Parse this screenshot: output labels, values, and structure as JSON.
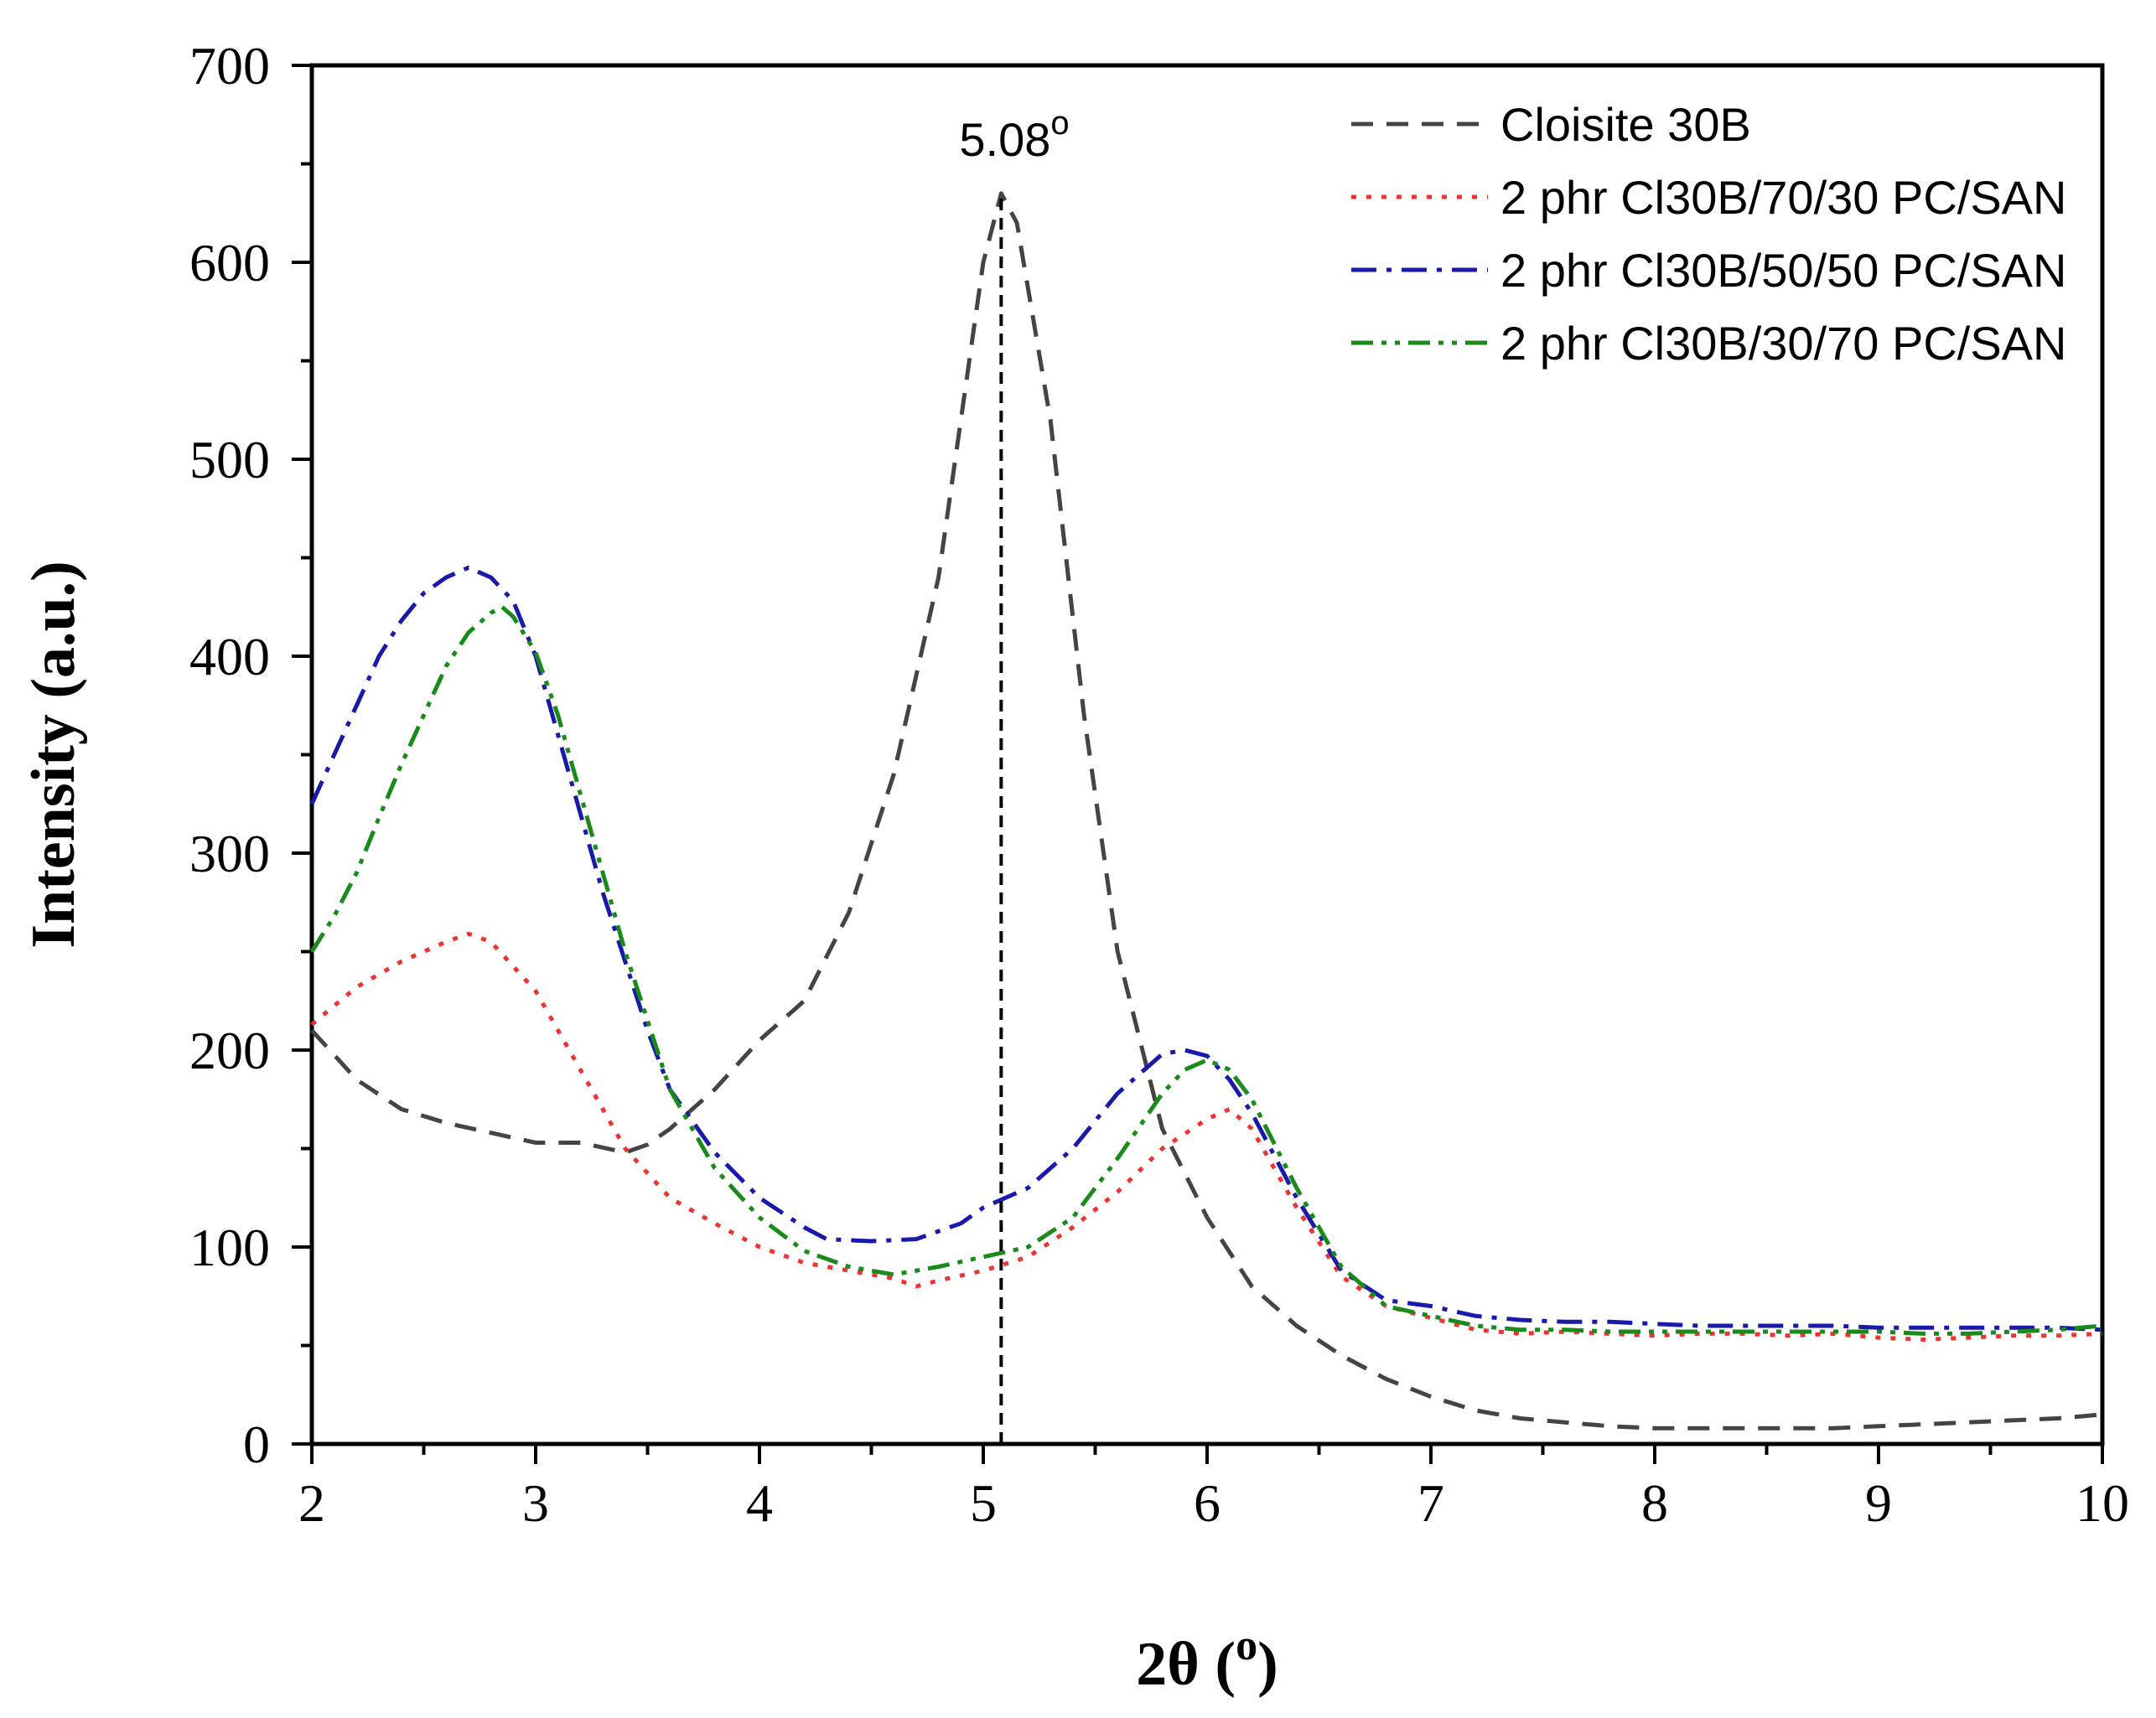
{
  "chart_data": {
    "type": "line",
    "title": "",
    "xlabel_main": "2θ (",
    "xlabel_sup": "o",
    "xlabel_close": ")",
    "ylabel": "Intensity (a.u.)",
    "xlim": [
      2,
      10
    ],
    "ylim": [
      0,
      700
    ],
    "xticks": [
      2,
      3,
      4,
      5,
      6,
      7,
      8,
      9,
      10
    ],
    "yticks": [
      0,
      100,
      200,
      300,
      400,
      500,
      600,
      700
    ],
    "grid": false,
    "legend_position": "top-right",
    "annotation": {
      "label": "5.08",
      "sup": "o",
      "x": 5.08,
      "reference_line_to": 635
    },
    "series": [
      {
        "name": "Cloisite 30B",
        "color": "#444444",
        "style": "dash",
        "x": [
          2.0,
          2.2,
          2.4,
          2.6,
          2.8,
          3.0,
          3.2,
          3.4,
          3.5,
          3.6,
          3.8,
          4.0,
          4.2,
          4.4,
          4.6,
          4.8,
          4.9,
          5.0,
          5.08,
          5.15,
          5.3,
          5.45,
          5.6,
          5.8,
          6.0,
          6.2,
          6.4,
          6.6,
          6.8,
          7.0,
          7.2,
          7.4,
          7.6,
          7.8,
          8.0,
          8.2,
          8.4,
          8.6,
          8.8,
          9.0,
          9.2,
          9.4,
          9.6,
          9.8,
          10.0
        ],
        "values": [
          210,
          185,
          170,
          163,
          158,
          153,
          153,
          148,
          152,
          160,
          180,
          205,
          225,
          270,
          340,
          440,
          520,
          600,
          635,
          620,
          520,
          370,
          250,
          160,
          115,
          80,
          60,
          45,
          33,
          24,
          17,
          13,
          11,
          9,
          8,
          8,
          8,
          8,
          8,
          9,
          10,
          11,
          12,
          13,
          15
        ]
      },
      {
        "name": "2 phr Cl30B/70/30 PC/SAN",
        "color": "#ee3333",
        "style": "dot",
        "x": [
          2.0,
          2.2,
          2.4,
          2.6,
          2.7,
          2.8,
          3.0,
          3.2,
          3.4,
          3.6,
          3.8,
          4.0,
          4.2,
          4.4,
          4.6,
          4.7,
          4.8,
          5.0,
          5.2,
          5.4,
          5.6,
          5.8,
          6.0,
          6.1,
          6.2,
          6.4,
          6.6,
          6.8,
          7.0,
          7.2,
          7.4,
          7.6,
          7.8,
          8.0,
          8.2,
          8.4,
          8.6,
          8.8,
          9.0,
          9.2,
          9.4,
          9.6,
          9.8,
          10.0
        ],
        "values": [
          213,
          232,
          245,
          255,
          259,
          255,
          230,
          190,
          150,
          125,
          112,
          100,
          92,
          88,
          84,
          80,
          83,
          88,
          95,
          110,
          128,
          150,
          165,
          170,
          160,
          120,
          85,
          70,
          64,
          58,
          56,
          57,
          56,
          55,
          56,
          56,
          55,
          56,
          54,
          53,
          54,
          55,
          55,
          56
        ]
      },
      {
        "name": "2 phr Cl30B/50/50 PC/SAN",
        "color": "#1a1aaa",
        "style": "dashdot",
        "x": [
          2.0,
          2.1,
          2.2,
          2.3,
          2.4,
          2.5,
          2.6,
          2.7,
          2.8,
          2.9,
          3.0,
          3.1,
          3.2,
          3.3,
          3.4,
          3.5,
          3.6,
          3.8,
          4.0,
          4.2,
          4.3,
          4.5,
          4.7,
          4.9,
          5.0,
          5.2,
          5.4,
          5.6,
          5.8,
          5.9,
          6.0,
          6.1,
          6.2,
          6.4,
          6.6,
          6.8,
          7.0,
          7.2,
          7.4,
          7.6,
          7.8,
          8.0,
          8.2,
          8.4,
          8.6,
          8.8,
          9.0,
          9.2,
          9.4,
          9.6,
          9.8,
          10.0
        ],
        "values": [
          325,
          350,
          375,
          400,
          418,
          432,
          440,
          445,
          440,
          428,
          400,
          360,
          320,
          280,
          245,
          210,
          180,
          148,
          125,
          110,
          104,
          103,
          104,
          112,
          120,
          130,
          150,
          178,
          198,
          200,
          197,
          185,
          168,
          125,
          88,
          73,
          70,
          65,
          63,
          62,
          62,
          61,
          60,
          60,
          60,
          60,
          59,
          59,
          59,
          59,
          59,
          58
        ]
      },
      {
        "name": "2 phr Cl30B/30/70 PC/SAN",
        "color": "#1a8a1a",
        "style": "dashdotdot",
        "x": [
          2.0,
          2.1,
          2.2,
          2.3,
          2.4,
          2.5,
          2.6,
          2.7,
          2.8,
          2.85,
          2.9,
          3.0,
          3.1,
          3.2,
          3.3,
          3.4,
          3.5,
          3.6,
          3.8,
          4.0,
          4.2,
          4.4,
          4.6,
          4.8,
          5.0,
          5.2,
          5.4,
          5.6,
          5.8,
          5.9,
          6.0,
          6.1,
          6.2,
          6.4,
          6.6,
          6.8,
          7.0,
          7.2,
          7.4,
          7.6,
          7.8,
          8.0,
          8.2,
          8.4,
          8.6,
          8.8,
          9.0,
          9.2,
          9.4,
          9.6,
          9.8,
          10.0
        ],
        "values": [
          250,
          268,
          290,
          318,
          345,
          370,
          395,
          412,
          422,
          425,
          420,
          402,
          370,
          330,
          290,
          250,
          215,
          180,
          140,
          115,
          98,
          90,
          86,
          90,
          95,
          100,
          115,
          145,
          178,
          190,
          195,
          190,
          175,
          130,
          90,
          70,
          65,
          60,
          58,
          58,
          57,
          57,
          57,
          57,
          57,
          57,
          57,
          56,
          56,
          57,
          58,
          60
        ]
      }
    ]
  }
}
